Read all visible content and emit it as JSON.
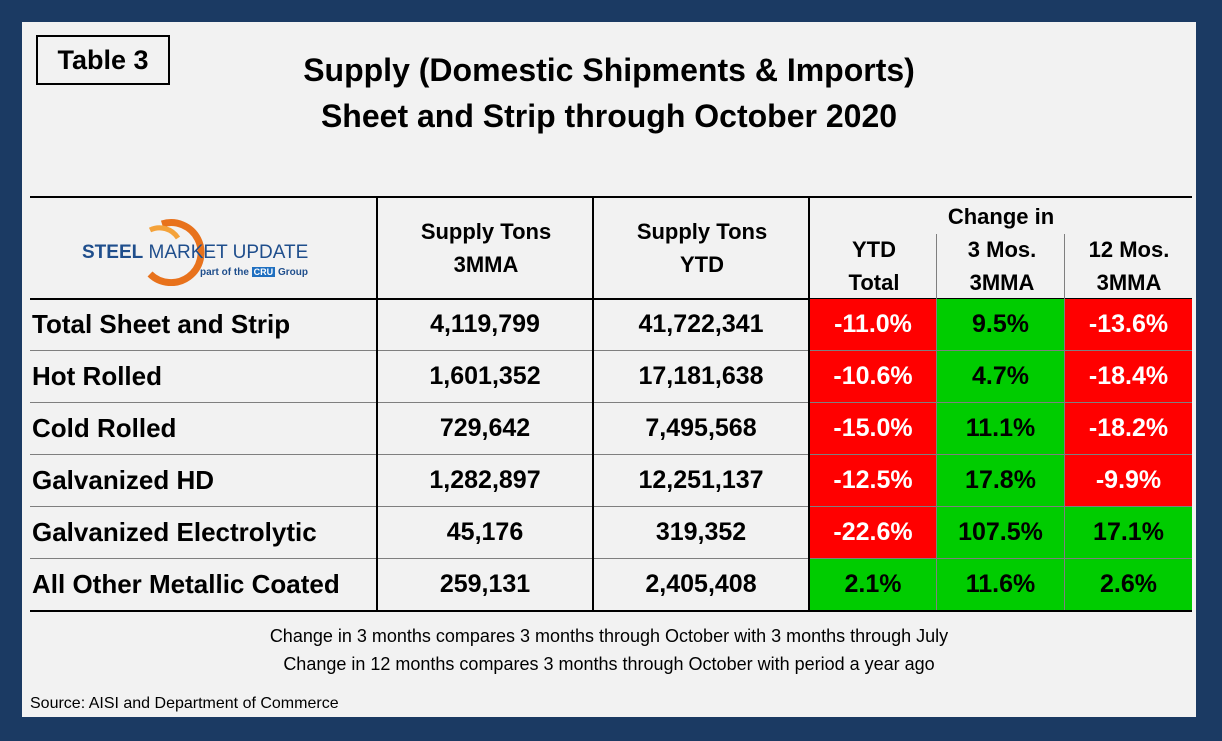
{
  "table_label": "Table 3",
  "title_line1": "Supply (Domestic Shipments & Imports)",
  "title_line2": "Sheet and Strip through October 2020",
  "logo": {
    "brand_part1": "STEEL",
    "brand_part2": "MARKET UPDATE",
    "tagline_pre": "part of the",
    "tagline_mark": "CRU",
    "tagline_post": "Group"
  },
  "headers": {
    "col1_line1": "Supply Tons",
    "col1_line2": "3MMA",
    "col2_line1": "Supply Tons",
    "col2_line2": "YTD",
    "change_group": "Change in",
    "col3_line1": "YTD",
    "col3_line2": "Total",
    "col4_line1": "3 Mos.",
    "col4_line2": "3MMA",
    "col5_line1": "12 Mos.",
    "col5_line2": "3MMA"
  },
  "rows": [
    {
      "label": "Total Sheet and Strip",
      "mma3": "4,119,799",
      "ytd": "41,722,341",
      "ytd_total": "-11.0%",
      "mos3": "9.5%",
      "mos12": "-13.6%",
      "c3": "red",
      "c4": "green",
      "c5": "red"
    },
    {
      "label": "Hot Rolled",
      "mma3": "1,601,352",
      "ytd": "17,181,638",
      "ytd_total": "-10.6%",
      "mos3": "4.7%",
      "mos12": "-18.4%",
      "c3": "red",
      "c4": "green",
      "c5": "red"
    },
    {
      "label": "Cold Rolled",
      "mma3": "729,642",
      "ytd": "7,495,568",
      "ytd_total": "-15.0%",
      "mos3": "11.1%",
      "mos12": "-18.2%",
      "c3": "red",
      "c4": "green",
      "c5": "red"
    },
    {
      "label": "Galvanized HD",
      "mma3": "1,282,897",
      "ytd": "12,251,137",
      "ytd_total": "-12.5%",
      "mos3": "17.8%",
      "mos12": "-9.9%",
      "c3": "red",
      "c4": "green",
      "c5": "red"
    },
    {
      "label": "Galvanized Electrolytic",
      "mma3": "45,176",
      "ytd": "319,352",
      "ytd_total": "-22.6%",
      "mos3": "107.5%",
      "mos12": "17.1%",
      "c3": "red",
      "c4": "green",
      "c5": "green"
    },
    {
      "label": "All Other Metallic Coated",
      "mma3": "259,131",
      "ytd": "2,405,408",
      "ytd_total": "2.1%",
      "mos3": "11.6%",
      "mos12": "2.6%",
      "c3": "green",
      "c4": "green",
      "c5": "green"
    }
  ],
  "note1": "Change in 3 months compares 3 months through October with 3 months through July",
  "note2": "Change in 12 months compares 3 months through October with period a year ago",
  "source": "Source: AISI and Department of Commerce"
}
